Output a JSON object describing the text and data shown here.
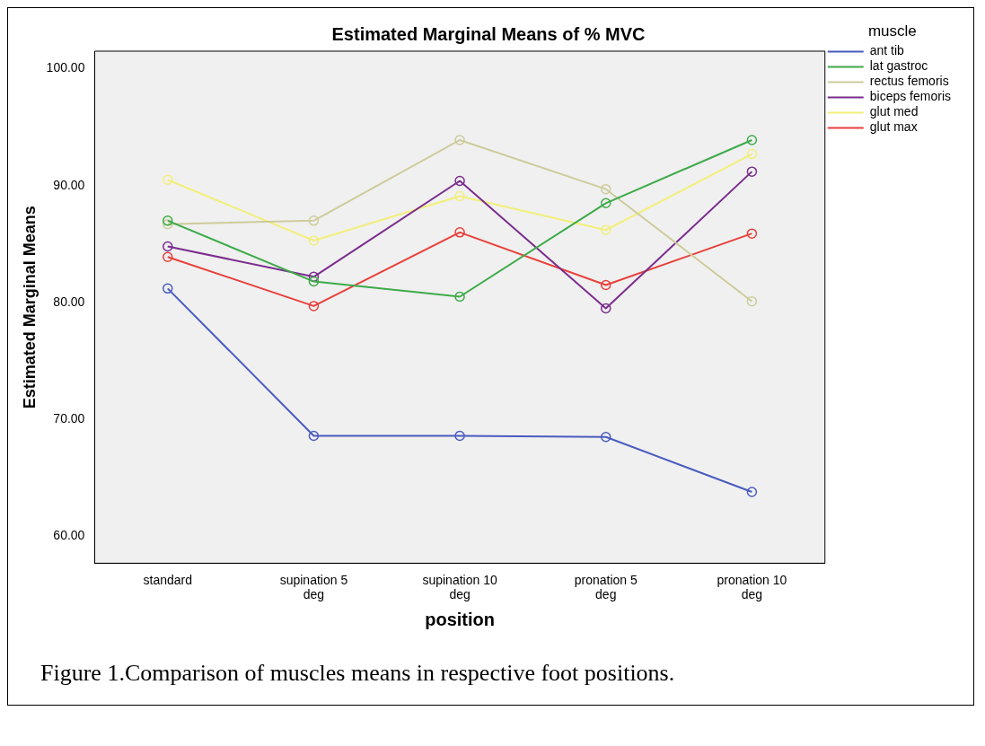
{
  "chart_data": {
    "type": "line",
    "title": "Estimated Marginal Means of % MVC",
    "xlabel": "position",
    "ylabel": "Estimated Marginal Means",
    "legend_title": "muscle",
    "legend": "right",
    "marker": "circle",
    "grid": false,
    "categories": [
      "standard",
      "supination 5 deg",
      "supination 10 deg",
      "pronation 5 deg",
      "pronation 10 deg"
    ],
    "ylim": [
      57.7,
      101.5
    ],
    "yticks": [
      {
        "value": 60,
        "label": "60.00"
      },
      {
        "value": 70,
        "label": "70.00"
      },
      {
        "value": 80,
        "label": "80.00"
      },
      {
        "value": 90,
        "label": "90.00"
      },
      {
        "value": 100,
        "label": "100.00"
      }
    ],
    "series": [
      {
        "name": "ant tib",
        "color": "#4a5bbf",
        "values": [
          81.2,
          68.6,
          68.6,
          68.5,
          63.8
        ]
      },
      {
        "name": "lat gastroc",
        "color": "#3daa48",
        "values": [
          87.0,
          81.8,
          80.5,
          88.5,
          93.9
        ]
      },
      {
        "name": "rectus femoris",
        "color": "#cdcc9c",
        "values": [
          86.7,
          87.0,
          93.9,
          89.7,
          80.1
        ]
      },
      {
        "name": "biceps femoris",
        "color": "#7b2d8e",
        "values": [
          84.8,
          82.2,
          90.4,
          79.5,
          91.2
        ]
      },
      {
        "name": "glut med",
        "color": "#f2ef7a",
        "values": [
          90.5,
          85.3,
          89.1,
          86.2,
          92.7
        ]
      },
      {
        "name": "glut max",
        "color": "#e8403a",
        "values": [
          83.9,
          79.7,
          86.0,
          81.5,
          85.9
        ]
      }
    ],
    "annotations": [
      "Figure 1.Comparison of muscles means in respective foot positions."
    ]
  }
}
